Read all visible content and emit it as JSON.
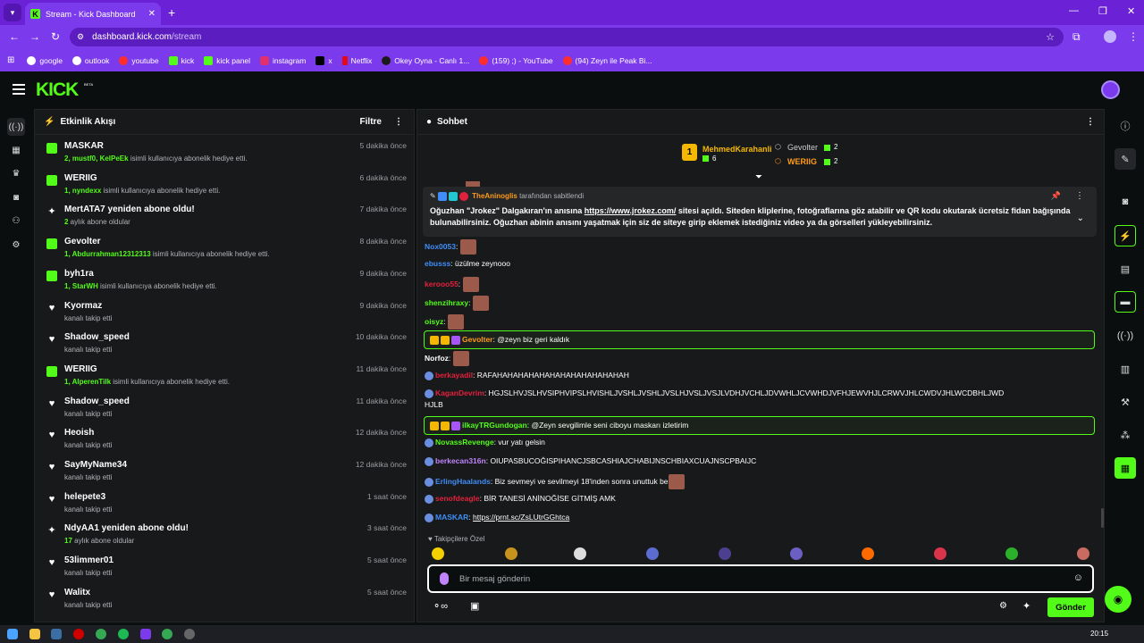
{
  "browser": {
    "tab_title": "Stream - Kick Dashboard",
    "url_host": "dashboard.kick.com",
    "url_path": "/stream",
    "bookmarks": [
      "google",
      "outlook",
      "youtube",
      "kick",
      "kick panel",
      "instagram",
      "x",
      "Netflix",
      "Okey Oyna - Canlı 1...",
      "(159) ;) - YouTube",
      "(94) Zeyn ile Peak Bi..."
    ]
  },
  "app": {
    "logo": "KICK",
    "beta": "BETA"
  },
  "activity": {
    "title": "Etkinlik Akışı",
    "filter_label": "Filtre",
    "items": [
      {
        "type": "gift",
        "name": "MASKAR",
        "highlight": "2, mustf0, KelPeEk",
        "text": " isimli kullanıcıya abonelik hediye etti.",
        "time": "5 dakika önce"
      },
      {
        "type": "gift",
        "name": "WERIIG",
        "highlight": "1, nyndexx",
        "text": " isimli kullanıcıya abonelik hediye etti.",
        "time": "6 dakika önce"
      },
      {
        "type": "resub",
        "name": "MertATA7 yeniden abone oldu!",
        "highlight": "2",
        "text": " aylık abone oldular",
        "time": "7 dakika önce"
      },
      {
        "type": "gift",
        "name": "Gevolter",
        "highlight": "1, Abdurrahman12312313",
        "text": " isimli kullanıcıya abonelik hediye etti.",
        "time": "8 dakika önce"
      },
      {
        "type": "gift",
        "name": "byh1ra",
        "highlight": "1, StarWH",
        "text": " isimli kullanıcıya abonelik hediye etti.",
        "time": "9 dakika önce"
      },
      {
        "type": "follow",
        "name": "Kyormaz",
        "highlight": "",
        "text": "kanalı takip etti",
        "time": "9 dakika önce"
      },
      {
        "type": "follow",
        "name": "Shadow_speed",
        "highlight": "",
        "text": "kanalı takip etti",
        "time": "10 dakika önce"
      },
      {
        "type": "gift",
        "name": "WERIIG",
        "highlight": "1, AlperenTilk",
        "text": " isimli kullanıcıya abonelik hediye etti.",
        "time": "11 dakika önce"
      },
      {
        "type": "follow",
        "name": "Shadow_speed",
        "highlight": "",
        "text": "kanalı takip etti",
        "time": "11 dakika önce"
      },
      {
        "type": "follow",
        "name": "Heoish",
        "highlight": "",
        "text": "kanalı takip etti",
        "time": "12 dakika önce"
      },
      {
        "type": "follow",
        "name": "SayMyName34",
        "highlight": "",
        "text": "kanalı takip etti",
        "time": "12 dakika önce"
      },
      {
        "type": "follow",
        "name": "helepete3",
        "highlight": "",
        "text": "kanalı takip etti",
        "time": "1 saat önce"
      },
      {
        "type": "resub",
        "name": "NdyAA1 yeniden abone oldu!",
        "highlight": "17",
        "text": " aylık abone oldular",
        "time": "3 saat önce"
      },
      {
        "type": "follow",
        "name": "53limmer01",
        "highlight": "",
        "text": "kanalı takip etti",
        "time": "5 saat önce"
      },
      {
        "type": "follow",
        "name": "Walitx",
        "highlight": "",
        "text": "kanalı takip etti",
        "time": "5 saat önce"
      }
    ]
  },
  "chat": {
    "title": "Sohbet",
    "leaderboard": {
      "first_rank": "1",
      "first_name": "MehmedKarahanli",
      "first_count": "6",
      "second_name": "Gevolter",
      "second_count": "2",
      "third_name": "WERIIG",
      "third_count": "2"
    },
    "pinned": {
      "user": "TheAninoglis",
      "meta": "tarafından sabitlendi",
      "text_1": "Oğuzhan \"Jrokez\" Dalgakıran'ın anısına ",
      "link": "https://www.jrokez.com/",
      "text_2": " sitesi açıldı. Siteden kliplerine, fotoğraflarına göz atabilir ve QR kodu okutarak ücretsiz fidan bağışında bulunabilirsiniz. Oğuzhan abinin anısını yaşatmak için siz de siteye girip eklemek istediğiniz video ya da görselleri yükleyebilirsiniz."
    },
    "messages": [
      {
        "user": "Nox0053",
        "color": "#3f8ef7",
        "text": "",
        "emote": true
      },
      {
        "user": "ebusss",
        "color": "#3f8ef7",
        "text": "üzülme zeynooo",
        "emote": false
      },
      {
        "user": "kerooo55",
        "color": "#e2213d",
        "text": "",
        "emote": true
      },
      {
        "user": "shenzihraxy",
        "color": "#53fc18",
        "text": "",
        "emote": true
      },
      {
        "user": "oisyz",
        "color": "#53fc18",
        "text": "",
        "emote": true
      },
      {
        "user": "Gevolter",
        "color": "#ff9b1a",
        "text": "@zeyn biz geri kaldık",
        "emote": false,
        "highlight": true
      },
      {
        "user": "Norfoz",
        "color": "#fff",
        "text": "",
        "emote": true
      },
      {
        "user": "berkayadil",
        "color": "#e2213d",
        "text": "RAFAHAHAHAHAHAHAHAHAHAHAHAHAH",
        "emote": false
      },
      {
        "user": "KaganDevrim",
        "color": "#e2213d",
        "text": "HGJSLHVJSLHVSIPHVIPSLHVISHLJVSHLJVSHLJVSLHJVSLJVSJLVDHJVCHLJDVWHLJCVWHDJVFHJEWVHJLCRWVJHLCWDVJHLWCDBHLJWD",
        "text2": "HJLB",
        "emote": false
      },
      {
        "user": "ilkayTRGundogan",
        "color": "#53fc18",
        "text": "@Zeyn sevgilimle seni ciboyu maskarı izletirim",
        "emote": false,
        "highlight": true
      },
      {
        "user": "NovassRevenge",
        "color": "#53fc18",
        "text": "vur yatı gelsin",
        "emote": false
      },
      {
        "user": "berkecan316n",
        "color": "#c084fc",
        "text": "OIUPASBUCOĞISPIHANCJSBCASHIAJCHABIJNSCHBIAXCUAJNSCPBAIJC",
        "emote": false
      },
      {
        "user": "ErlingHaalands",
        "color": "#3f8ef7",
        "text": "Biz sevmeyi ve sevilmeyi 18'inden sonra unuttuk be",
        "emote": true
      },
      {
        "user": "senofdeagle",
        "color": "#e2213d",
        "text": "BİR TANESİ ANİNOĞİSE GİTMİŞ AMK",
        "emote": false
      },
      {
        "user": "MASKAR",
        "color": "#3f8ef7",
        "text": "https://prnt.sc/ZsLUtrGGhtca",
        "emote": false,
        "link": true
      }
    ],
    "followers_only": "Takipçilere Özel",
    "input_placeholder": "Bir mesaj gönderin",
    "send_label": "Gönder"
  },
  "taskbar": {
    "clock": "20:15"
  },
  "colors": {
    "brand": "#53fc18",
    "browser": "#7c3aed"
  }
}
